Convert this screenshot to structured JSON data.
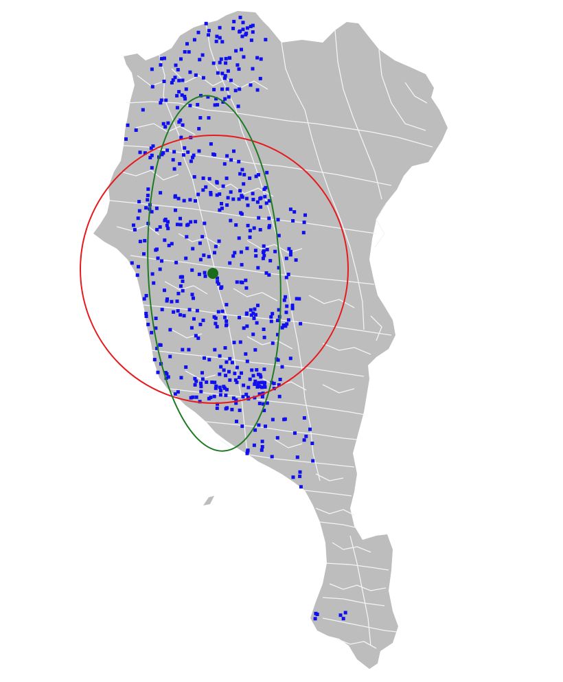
{
  "map": {
    "colors": {
      "land": "#bdbdbd",
      "boundaries": "#f2f4f7",
      "points": "#1010ee",
      "circle": "#e8191d",
      "ellipse": "#1e7a22",
      "center": "#1a6b1a"
    },
    "layers": [
      "region-boundaries",
      "point-locations",
      "mean-center",
      "standard-distance-circle",
      "standard-deviational-ellipse"
    ]
  }
}
